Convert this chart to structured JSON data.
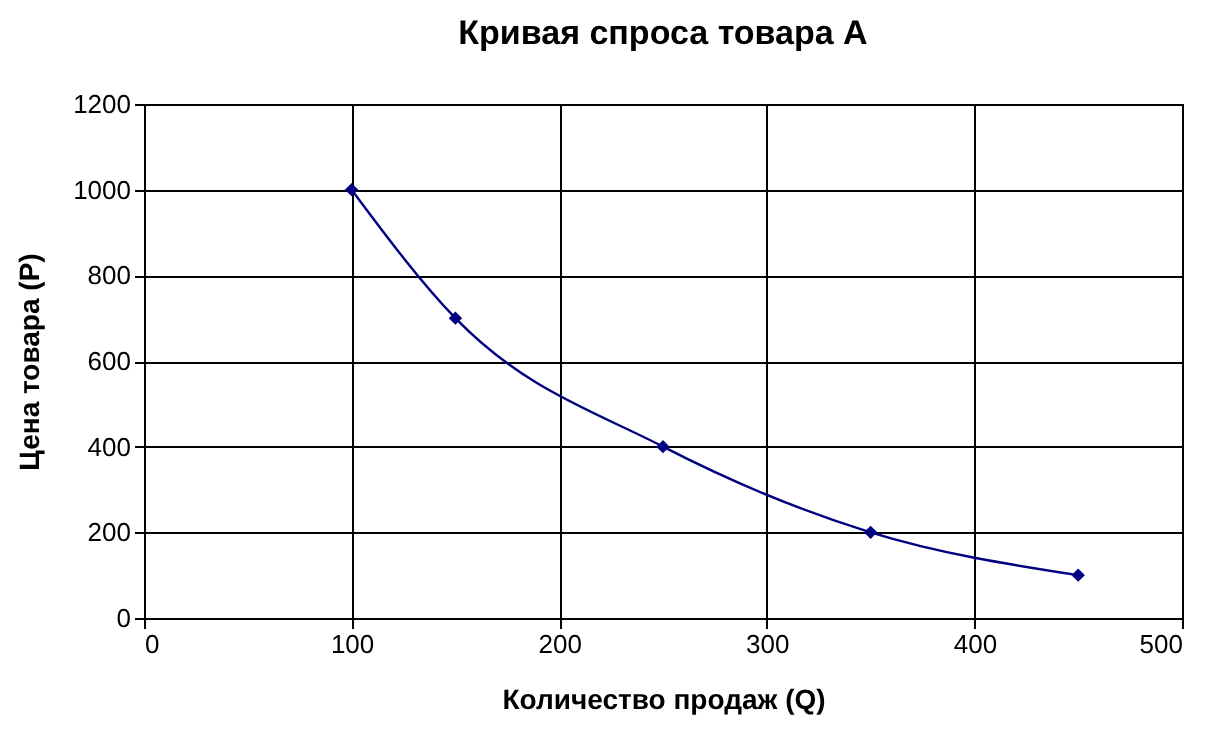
{
  "chart_data": {
    "type": "line",
    "title": "Кривая спроса товара А",
    "xlabel": "Количество продаж (Q)",
    "ylabel": "Цена товара (Р)",
    "x": [
      100,
      150,
      250,
      350,
      450
    ],
    "series": [
      {
        "color": "#000080",
        "values": [
          1000,
          700,
          400,
          200,
          100
        ]
      }
    ],
    "xlim": [
      0,
      500
    ],
    "xticks": [
      0,
      100,
      200,
      300,
      400,
      500
    ],
    "ylim": [
      0,
      1200
    ],
    "yticks": [
      0,
      200,
      400,
      600,
      800,
      1000,
      1200
    ],
    "grid": true,
    "marker": "diamond",
    "line_style": "solid"
  }
}
